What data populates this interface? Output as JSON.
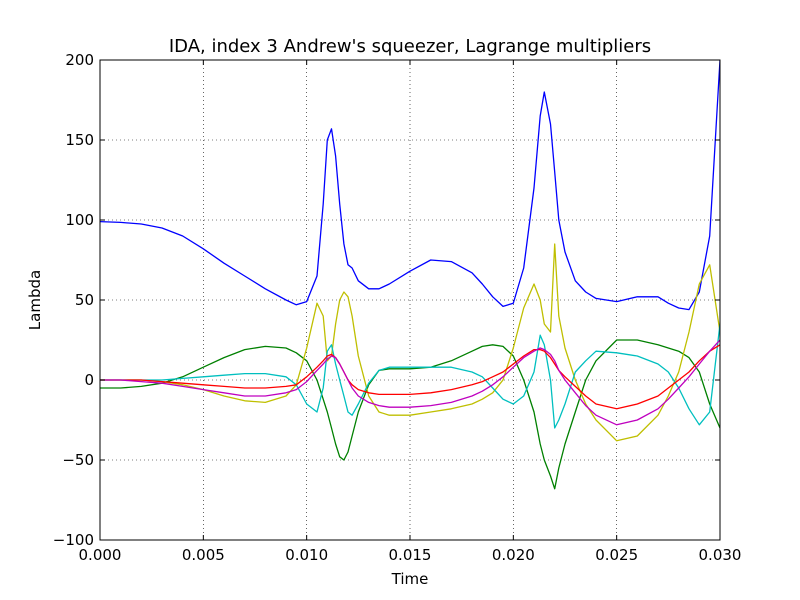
{
  "chart_data": {
    "type": "line",
    "title": "IDA, index 3 Andrew's squeezer, Lagrange multipliers",
    "xlabel": "Time",
    "ylabel": "Lambda",
    "xlim": [
      0.0,
      0.03
    ],
    "ylim": [
      -100,
      200
    ],
    "grid": true,
    "grid_style": "dotted",
    "x_ticks": [
      0.0,
      0.005,
      0.01,
      0.015,
      0.02,
      0.025,
      0.03
    ],
    "x_tick_labels": [
      "0.000",
      "0.005",
      "0.010",
      "0.015",
      "0.020",
      "0.025",
      "0.030"
    ],
    "y_ticks": [
      -100,
      -50,
      0,
      50,
      100,
      150,
      200
    ],
    "y_tick_labels": [
      "−100",
      "−50",
      "0",
      "50",
      "100",
      "150",
      "200"
    ],
    "x": [
      0.0,
      0.001,
      0.002,
      0.003,
      0.004,
      0.005,
      0.006,
      0.007,
      0.008,
      0.009,
      0.0095,
      0.01,
      0.0105,
      0.0108,
      0.011,
      0.0112,
      0.0114,
      0.0116,
      0.0118,
      0.012,
      0.0122,
      0.0125,
      0.013,
      0.0135,
      0.014,
      0.015,
      0.016,
      0.017,
      0.018,
      0.0185,
      0.019,
      0.0195,
      0.02,
      0.0205,
      0.021,
      0.0213,
      0.0215,
      0.0218,
      0.022,
      0.0222,
      0.0225,
      0.023,
      0.0235,
      0.024,
      0.025,
      0.026,
      0.027,
      0.0275,
      0.028,
      0.0285,
      0.029,
      0.0295,
      0.03
    ],
    "series": [
      {
        "color": "#0000ff",
        "values": [
          99,
          98.5,
          97.5,
          95,
          90,
          82,
          73,
          65,
          57,
          50,
          47,
          49,
          65,
          110,
          150,
          157,
          140,
          110,
          85,
          72,
          70,
          62,
          57,
          57,
          60,
          68,
          75,
          74,
          67,
          60,
          52,
          46,
          48,
          70,
          120,
          165,
          180,
          160,
          130,
          100,
          80,
          62,
          55,
          51,
          49,
          52,
          52,
          48,
          45,
          44,
          55,
          90,
          200
        ]
      },
      {
        "color": "#008000",
        "values": [
          -5,
          -5,
          -4,
          -2,
          2,
          8,
          14,
          19,
          21,
          20,
          17,
          12,
          0,
          -12,
          -20,
          -30,
          -40,
          -48,
          -50,
          -45,
          -35,
          -20,
          -3,
          6,
          7,
          7,
          8,
          12,
          18,
          21,
          22,
          21,
          15,
          0,
          -20,
          -40,
          -50,
          -60,
          -68,
          -55,
          -40,
          -20,
          0,
          12,
          25,
          25,
          22,
          20,
          18,
          14,
          5,
          -15,
          -30
        ]
      },
      {
        "color": "#bfbf00",
        "values": [
          0,
          0,
          0,
          -1,
          -3,
          -6,
          -10,
          -13,
          -14,
          -10,
          -3,
          20,
          48,
          40,
          12,
          15,
          35,
          50,
          55,
          52,
          40,
          15,
          -10,
          -20,
          -22,
          -22,
          -20,
          -18,
          -15,
          -12,
          -8,
          0,
          20,
          45,
          60,
          50,
          35,
          30,
          85,
          40,
          20,
          0,
          -15,
          -25,
          -38,
          -35,
          -22,
          -10,
          5,
          30,
          60,
          72,
          30
        ]
      },
      {
        "color": "#00bfbf",
        "values": [
          0,
          0,
          0,
          0,
          1,
          2,
          3,
          4,
          4,
          2,
          -3,
          -15,
          -20,
          -5,
          18,
          22,
          10,
          0,
          -10,
          -20,
          -22,
          -15,
          -2,
          6,
          8,
          8,
          8,
          8,
          5,
          2,
          -5,
          -12,
          -15,
          -10,
          5,
          28,
          22,
          0,
          -30,
          -25,
          -15,
          5,
          12,
          18,
          17,
          15,
          10,
          5,
          -5,
          -18,
          -28,
          -20,
          35
        ]
      },
      {
        "color": "#ff0000",
        "values": [
          0,
          0,
          0,
          -1,
          -2,
          -3,
          -4,
          -5,
          -5,
          -4,
          -3,
          2,
          8,
          12,
          15,
          16,
          14,
          10,
          5,
          0,
          -3,
          -6,
          -8,
          -9,
          -9,
          -9,
          -8,
          -6,
          -3,
          -1,
          2,
          5,
          10,
          15,
          19,
          19,
          18,
          14,
          10,
          6,
          2,
          -4,
          -10,
          -15,
          -18,
          -15,
          -10,
          -5,
          0,
          5,
          12,
          18,
          22
        ]
      },
      {
        "color": "#bf00bf",
        "values": [
          0,
          0,
          -1,
          -2,
          -4,
          -6,
          -8,
          -10,
          -10,
          -8,
          -6,
          -1,
          6,
          10,
          13,
          15,
          14,
          10,
          5,
          0,
          -5,
          -10,
          -14,
          -16,
          -17,
          -17,
          -16,
          -14,
          -10,
          -7,
          -3,
          2,
          8,
          14,
          18,
          20,
          19,
          16,
          12,
          6,
          0,
          -8,
          -16,
          -22,
          -28,
          -25,
          -18,
          -12,
          -5,
          2,
          10,
          18,
          25
        ]
      }
    ]
  }
}
